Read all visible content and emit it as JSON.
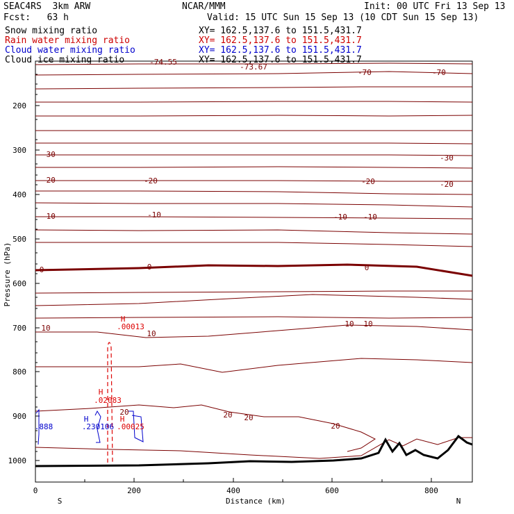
{
  "header": {
    "model": "SEAC4RS  3km ARW",
    "org": "NCAR/MMM",
    "init": "Init: 00 UTC Fri 13 Sep 13",
    "fcst": "Fcst:   63 h",
    "valid": "Valid: 15 UTC Sun 15 Sep 13 (10 CDT Sun 15 Sep 13)"
  },
  "legend": [
    {
      "label": "Snow mixing ratio",
      "xy": "XY= 162.5,137.6 to 151.5,431.7",
      "color": "#000000"
    },
    {
      "label": "Rain water mixing ratio",
      "xy": "XY= 162.5,137.6 to 151.5,431.7",
      "color": "#cc0000"
    },
    {
      "label": "Cloud water mixing ratio",
      "xy": "XY= 162.5,137.6 to 151.5,431.7",
      "color": "#0000cc"
    },
    {
      "label": "Cloud ice mixing ratio",
      "xy": "XY= 162.5,137.6 to 151.5,431.7",
      "color": "#000000"
    }
  ],
  "axes": {
    "ylabel": "Pressure (hPa)",
    "xlabel": "Distance (km)",
    "left_end": "S",
    "right_end": "N",
    "y_ticks": [
      "200",
      "300",
      "400",
      "500",
      "600",
      "700",
      "800",
      "900",
      "1000"
    ],
    "x_ticks": [
      "0",
      "200",
      "400",
      "600",
      "800"
    ]
  },
  "isotherm_labels": [
    "-74.55",
    "-73.67",
    "-70",
    "-70",
    "-30",
    "-30",
    "-20",
    "-20",
    "-20",
    "-20",
    "-10",
    "-10",
    "-10",
    "-10",
    "0",
    "0",
    "0",
    "10",
    "10",
    "10",
    "10",
    "20",
    "20",
    "20"
  ],
  "extrema": {
    "rain_h1": "H",
    "rain_v1": ".00013",
    "rain_h2": "H",
    "rain_v2": ".02083",
    "rain_h3": "H",
    "rain_v3": ".00025",
    "cloud_h1": "H",
    "cloud_v1": ".230106",
    "cloud_v2": ".888"
  },
  "colors": {
    "isotherm": "#7a0000",
    "freezing": "#7a0000",
    "terrain": "#000000",
    "rain": "#dd0000",
    "cloud": "#0000cc"
  }
}
